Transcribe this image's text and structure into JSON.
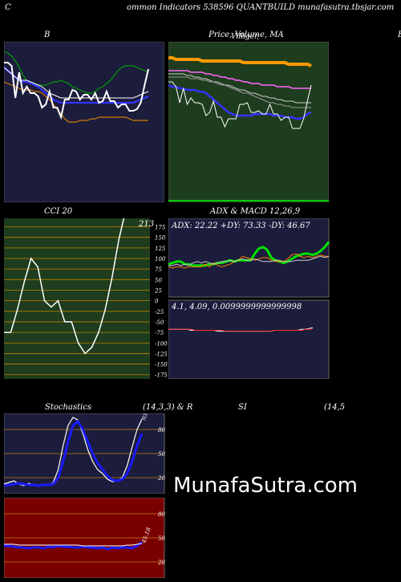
{
  "header": {
    "left": "C",
    "center": "ommon  Indicators 538596  QUANTBUILD munafasutra.tbsjar.com"
  },
  "titles": {
    "bb": "B",
    "price": "Price,  Volume,  MA",
    "price_overlay": "Villiger,",
    "right_cut": "B",
    "cci": "CCI 20",
    "adx": "ADX  & MACD 12,26,9",
    "stoch_left": "Stochastics",
    "stoch_mid": "(14,3,3) & R",
    "stoch_si": "SI",
    "stoch_right": "(14,5"
  },
  "watermark": "MunafaSutra.com",
  "colors": {
    "navy": "#1c1c3c",
    "green_dark": "#1e3d1e",
    "darkred": "#7a0000",
    "orange": "#d08000",
    "blue": "#1a1aff",
    "lime": "#00e000"
  },
  "chart_data": [
    {
      "id": "bollinger",
      "type": "line",
      "title": "B",
      "series": [
        {
          "color": "#00a000",
          "values": [
            94,
            93,
            91,
            88,
            84,
            79,
            76,
            74,
            74,
            73,
            73,
            73,
            74,
            75,
            75,
            76,
            75,
            74,
            72,
            71,
            70,
            69,
            68,
            68,
            69,
            71,
            72,
            74,
            76,
            79,
            82,
            84,
            85,
            85,
            85,
            84,
            83,
            82,
            81
          ]
        },
        {
          "color": "#3333ff",
          "values": [
            84,
            82,
            80,
            78,
            76,
            75,
            75,
            74,
            73,
            72,
            70,
            68,
            66,
            64,
            63,
            62,
            62,
            62,
            62,
            62,
            62,
            62,
            62,
            62,
            62,
            62,
            62,
            62,
            62,
            62,
            62,
            62,
            62,
            62,
            62,
            63,
            64,
            65,
            66
          ]
        },
        {
          "color": "#ffffff",
          "values": [
            84,
            82,
            80,
            78,
            76,
            76,
            76,
            75,
            74,
            73,
            72,
            70,
            68,
            67,
            66,
            65,
            65,
            65,
            65,
            65,
            65,
            65,
            65,
            65,
            65,
            65,
            65,
            65,
            65,
            65,
            65,
            65,
            65,
            65,
            65,
            66,
            67,
            68,
            69
          ]
        },
        {
          "color": "#d08000",
          "values": [
            75,
            74,
            73,
            72,
            71,
            70,
            70,
            70,
            69,
            69,
            68,
            66,
            64,
            61,
            58,
            55,
            52,
            50,
            50,
            50,
            51,
            51,
            51,
            52,
            52,
            53,
            53,
            53,
            53,
            53,
            53,
            53,
            53,
            52,
            51,
            51,
            51,
            51,
            51
          ]
        },
        {
          "color": "#ffffff",
          "values": [
            87,
            87,
            85,
            65,
            81,
            68,
            72,
            68,
            68,
            66,
            59,
            61,
            69,
            59,
            59,
            53,
            64,
            64,
            70,
            69,
            64,
            67,
            67,
            64,
            68,
            62,
            63,
            69,
            63,
            63,
            59,
            61,
            61,
            57,
            57,
            58,
            62,
            73,
            83
          ]
        }
      ]
    },
    {
      "id": "price_ma",
      "type": "line",
      "title": "Price,  Volume,  MA",
      "series": [
        {
          "color": "#ff9900",
          "values": [
            90,
            90,
            89,
            89,
            89,
            89,
            89,
            89,
            89,
            88,
            88,
            88,
            88,
            88,
            88,
            88,
            88,
            88,
            88,
            88,
            87,
            87,
            87,
            87,
            87,
            87,
            87,
            87,
            87,
            87,
            87,
            87,
            86,
            86,
            86,
            86,
            86,
            86,
            85
          ]
        },
        {
          "color": "#ff66ff",
          "values": [
            82,
            82,
            82,
            82,
            82,
            82,
            81,
            81,
            81,
            81,
            80,
            80,
            79,
            79,
            78,
            78,
            77,
            77,
            76,
            76,
            75,
            75,
            74,
            74,
            74,
            73,
            73,
            73,
            73,
            72,
            72,
            72,
            72,
            71,
            71,
            71,
            71,
            71,
            71
          ]
        },
        {
          "color": "#cccccc",
          "values": [
            80,
            80,
            80,
            80,
            80,
            79,
            79,
            78,
            78,
            77,
            77,
            76,
            75,
            75,
            74,
            73,
            73,
            72,
            71,
            70,
            70,
            69,
            68,
            68,
            67,
            66,
            66,
            65,
            65,
            64,
            64,
            63,
            63,
            63,
            62,
            62,
            62,
            62,
            62
          ]
        },
        {
          "color": "#999999",
          "values": [
            78,
            78,
            78,
            78,
            78,
            78,
            77,
            77,
            77,
            76,
            76,
            75,
            75,
            74,
            73,
            73,
            72,
            71,
            70,
            69,
            68,
            68,
            67,
            66,
            65,
            64,
            63,
            62,
            62,
            61,
            61,
            60,
            60,
            59,
            59,
            59,
            59,
            59,
            59
          ]
        },
        {
          "color": "#3333ff",
          "values": [
            73,
            72,
            72,
            71,
            71,
            70,
            70,
            70,
            69,
            69,
            68,
            66,
            64,
            62,
            60,
            58,
            56,
            55,
            54,
            54,
            54,
            54,
            54,
            55,
            55,
            55,
            55,
            55,
            54,
            54,
            54,
            53,
            53,
            53,
            52,
            52,
            53,
            55,
            56
          ]
        },
        {
          "color": "#ffffff",
          "values": [
            75,
            75,
            72,
            62,
            71,
            61,
            65,
            62,
            62,
            61,
            54,
            56,
            63,
            53,
            53,
            47,
            52,
            52,
            52,
            61,
            61,
            62,
            56,
            56,
            57,
            55,
            55,
            61,
            55,
            55,
            51,
            53,
            53,
            46,
            46,
            46,
            52,
            63,
            73
          ]
        }
      ]
    },
    {
      "id": "cci",
      "type": "line",
      "title": "CCI 20",
      "yticks": [
        175,
        150,
        125,
        100,
        75,
        50,
        25,
        0,
        -25,
        -50,
        -75,
        -100,
        -125,
        -150,
        -175
      ],
      "ylim": [
        -185,
        195
      ],
      "last_label": "213",
      "series": [
        {
          "color": "#ffffff",
          "values": [
            -75,
            -75,
            -20,
            45,
            100,
            80,
            0,
            -15,
            0,
            -50,
            -50,
            -100,
            -125,
            -110,
            -75,
            -20,
            55,
            145,
            213,
            213
          ]
        }
      ]
    },
    {
      "id": "adx",
      "type": "line",
      "title": "ADX  & MACD 12,26,9",
      "readout": "ADX: 22.22  +DY: 73.33 -DY: 46.67",
      "series": [
        {
          "name": "ADX",
          "color": "#00e000",
          "values": [
            25,
            26,
            27,
            27,
            25,
            25,
            24,
            24,
            24,
            24,
            25,
            25,
            26,
            26,
            27,
            28,
            27,
            28,
            28,
            28,
            28,
            33,
            37,
            38,
            36,
            30,
            28,
            27,
            26,
            27,
            29,
            31,
            32,
            33,
            33,
            32,
            33,
            35,
            38,
            42
          ]
        },
        {
          "name": "+DI",
          "color": "#ff7f00",
          "values": [
            23,
            22,
            23,
            23,
            22,
            23,
            23,
            23,
            23,
            25,
            23,
            26,
            24,
            23,
            24,
            25,
            27,
            28,
            31,
            30,
            29,
            28,
            29,
            30,
            30,
            28,
            27,
            27,
            27,
            29,
            32,
            33,
            31,
            30,
            31,
            30,
            31,
            32,
            31,
            31
          ]
        },
        {
          "name": "-DI",
          "color": "#cccccc",
          "values": [
            24,
            24,
            25,
            24,
            25,
            24,
            26,
            27,
            26,
            27,
            26,
            25,
            26,
            27,
            27,
            28,
            27,
            28,
            29,
            28,
            28,
            29,
            28,
            27,
            27,
            27,
            28,
            28,
            27,
            27,
            27,
            28,
            28,
            28,
            28,
            29,
            30,
            31,
            30,
            31
          ]
        }
      ]
    },
    {
      "id": "macd",
      "type": "line",
      "readout": "4.1,  4.09,  0.0099999999999998",
      "series": [
        {
          "name": "MACD",
          "color": "#ffffff",
          "values": [
            0,
            0,
            0,
            0,
            0,
            0,
            -1,
            -1,
            -1,
            -1,
            -1,
            -1,
            -1,
            -2,
            -2,
            -2,
            -2,
            -2,
            -2,
            -2,
            -2,
            -2,
            -2,
            -2,
            -2,
            -2,
            -2,
            -2,
            -1,
            -1,
            -1,
            -1,
            -1,
            -1,
            -1,
            0,
            0,
            1,
            2
          ]
        },
        {
          "name": "Signal",
          "color": "#ff3333",
          "values": [
            0,
            0,
            0,
            0,
            0,
            0,
            0,
            -1,
            -1,
            -1,
            -1,
            -1,
            -1,
            -1,
            -1,
            -2,
            -2,
            -2,
            -2,
            -2,
            -2,
            -2,
            -2,
            -2,
            -2,
            -2,
            -2,
            -2,
            -1,
            -1,
            -1,
            -1,
            -1,
            -1,
            -1,
            -1,
            0,
            0,
            1
          ]
        }
      ]
    },
    {
      "id": "stochastics",
      "type": "line",
      "title": "Stochastics (14,3,3)",
      "yticks": [
        80,
        50,
        20
      ],
      "ylim": [
        0,
        100
      ],
      "last_label": "93.57",
      "series": [
        {
          "name": "%K",
          "color": "#ffffff",
          "values": [
            12,
            14,
            16,
            12,
            10,
            13,
            11,
            9,
            12,
            10,
            14,
            30,
            60,
            85,
            95,
            92,
            75,
            55,
            40,
            30,
            25,
            18,
            15,
            16,
            20,
            35,
            58,
            80,
            93
          ]
        },
        {
          "name": "%D",
          "color": "#1a1aff",
          "values": [
            10,
            11,
            12,
            13,
            12,
            11,
            11,
            10,
            11,
            11,
            12,
            20,
            40,
            65,
            85,
            90,
            80,
            65,
            50,
            38,
            30,
            22,
            17,
            16,
            18,
            25,
            40,
            60,
            75
          ]
        }
      ]
    },
    {
      "id": "rsi",
      "type": "line",
      "title": "RSI (14,5)",
      "yticks": [
        80,
        50,
        20
      ],
      "ylim": [
        0,
        100
      ],
      "last_label": "45.18",
      "series": [
        {
          "name": "RSI",
          "color": "#1a1aff",
          "values": [
            40,
            40,
            39,
            38,
            38,
            37,
            38,
            38,
            37,
            39,
            38,
            40,
            39,
            39,
            38,
            38,
            39,
            38,
            38,
            37,
            38,
            36,
            38,
            37,
            38,
            38,
            37,
            40,
            45
          ]
        },
        {
          "name": "line",
          "color": "#ffffff",
          "values": [
            42,
            42,
            42,
            41,
            41,
            41,
            41,
            41,
            41,
            41,
            41,
            41,
            41,
            41,
            41,
            41,
            40,
            40,
            40,
            40,
            40,
            40,
            40,
            40,
            40,
            41,
            41,
            42,
            43
          ]
        }
      ]
    }
  ]
}
